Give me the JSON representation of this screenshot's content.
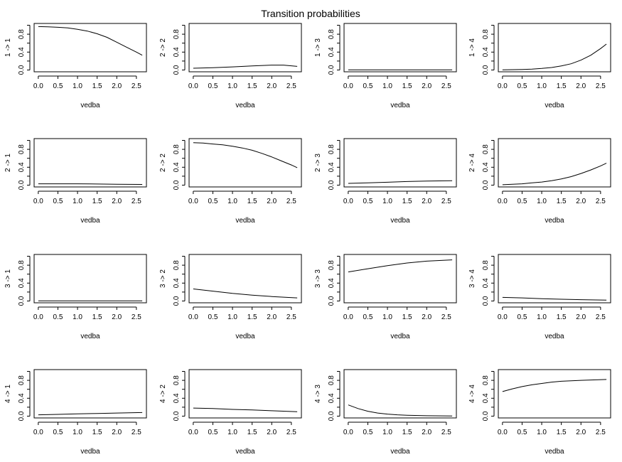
{
  "figure": {
    "title": "Transition probabilities"
  },
  "chart_data": [
    {
      "type": "line",
      "ylabel": "1 -> 1",
      "xlabel": "vedba",
      "x": [
        0,
        0.25,
        0.5,
        0.75,
        1,
        1.25,
        1.5,
        1.75,
        2,
        2.25,
        2.5,
        2.65
      ],
      "values": [
        0.97,
        0.965,
        0.955,
        0.94,
        0.91,
        0.87,
        0.81,
        0.73,
        0.62,
        0.51,
        0.4,
        0.33
      ],
      "xlim": [
        0,
        2.65
      ],
      "ylim": [
        0,
        1
      ],
      "xticks": [
        "0.0",
        "0.5",
        "1.0",
        "1.5",
        "2.0",
        "2.5"
      ],
      "yticks": [
        "0.0",
        "0.4",
        "0.8"
      ]
    },
    {
      "type": "line",
      "ylabel": "2 -> 2",
      "xlabel": "vedba",
      "x": [
        0,
        0.5,
        1,
        1.5,
        2,
        2.3,
        2.65
      ],
      "values": [
        0.04,
        0.05,
        0.07,
        0.09,
        0.11,
        0.11,
        0.08
      ],
      "xlim": [
        0,
        2.65
      ],
      "ylim": [
        0,
        1
      ],
      "xticks": [
        "0.0",
        "0.5",
        "1.0",
        "1.5",
        "2.0",
        "2.5"
      ],
      "yticks": [
        "0.0",
        "0.4",
        "0.8"
      ]
    },
    {
      "type": "line",
      "ylabel": "1 -> 3",
      "xlabel": "vedba",
      "x": [
        0,
        0.5,
        1,
        1.5,
        2,
        2.65
      ],
      "values": [
        0.003,
        0.003,
        0.003,
        0.003,
        0.003,
        0.003
      ],
      "xlim": [
        0,
        2.65
      ],
      "ylim": [
        0,
        1
      ],
      "xticks": [
        "0.0",
        "0.5",
        "1.0",
        "1.5",
        "2.0",
        "2.5"
      ],
      "yticks": [
        "0.0",
        "0.4",
        "0.8"
      ]
    },
    {
      "type": "line",
      "ylabel": "1 -> 4",
      "xlabel": "vedba",
      "x": [
        0,
        0.25,
        0.5,
        0.75,
        1,
        1.25,
        1.5,
        1.75,
        2,
        2.25,
        2.5,
        2.65
      ],
      "values": [
        0.005,
        0.008,
        0.013,
        0.02,
        0.035,
        0.055,
        0.09,
        0.14,
        0.22,
        0.33,
        0.48,
        0.58
      ],
      "xlim": [
        0,
        2.65
      ],
      "ylim": [
        0,
        1
      ],
      "xticks": [
        "0.0",
        "0.5",
        "1.0",
        "1.5",
        "2.0",
        "2.5"
      ],
      "yticks": [
        "0.0",
        "0.4",
        "0.8"
      ]
    },
    {
      "type": "line",
      "ylabel": "2 -> 1",
      "xlabel": "vedba",
      "x": [
        0,
        0.5,
        1,
        1.5,
        2,
        2.65
      ],
      "values": [
        0.03,
        0.03,
        0.03,
        0.025,
        0.02,
        0.015
      ],
      "xlim": [
        0,
        2.65
      ],
      "ylim": [
        0,
        1
      ],
      "xticks": [
        "0.0",
        "0.5",
        "1.0",
        "1.5",
        "2.0",
        "2.5"
      ],
      "yticks": [
        "0.0",
        "0.4",
        "0.8"
      ]
    },
    {
      "type": "line",
      "ylabel": "2 -> 2",
      "xlabel": "vedba",
      "x": [
        0,
        0.25,
        0.5,
        0.75,
        1,
        1.25,
        1.5,
        1.75,
        2,
        2.25,
        2.5,
        2.65
      ],
      "values": [
        0.95,
        0.94,
        0.92,
        0.9,
        0.87,
        0.83,
        0.78,
        0.71,
        0.63,
        0.54,
        0.45,
        0.39
      ],
      "xlim": [
        0,
        2.65
      ],
      "ylim": [
        0,
        1
      ],
      "xticks": [
        "0.0",
        "0.5",
        "1.0",
        "1.5",
        "2.0",
        "2.5"
      ],
      "yticks": [
        "0.0",
        "0.4",
        "0.8"
      ]
    },
    {
      "type": "line",
      "ylabel": "2 -> 3",
      "xlabel": "vedba",
      "x": [
        0,
        0.5,
        1,
        1.5,
        2,
        2.65
      ],
      "values": [
        0.04,
        0.05,
        0.065,
        0.08,
        0.09,
        0.1
      ],
      "xlim": [
        0,
        2.65
      ],
      "ylim": [
        0,
        1
      ],
      "xticks": [
        "0.0",
        "0.5",
        "1.0",
        "1.5",
        "2.0",
        "2.5"
      ],
      "yticks": [
        "0.0",
        "0.4",
        "0.8"
      ]
    },
    {
      "type": "line",
      "ylabel": "2 -> 4",
      "xlabel": "vedba",
      "x": [
        0,
        0.25,
        0.5,
        0.75,
        1,
        1.25,
        1.5,
        1.75,
        2,
        2.25,
        2.5,
        2.65
      ],
      "values": [
        0.01,
        0.02,
        0.03,
        0.05,
        0.07,
        0.1,
        0.14,
        0.19,
        0.26,
        0.34,
        0.43,
        0.49
      ],
      "xlim": [
        0,
        2.65
      ],
      "ylim": [
        0,
        1
      ],
      "xticks": [
        "0.0",
        "0.5",
        "1.0",
        "1.5",
        "2.0",
        "2.5"
      ],
      "yticks": [
        "0.0",
        "0.4",
        "0.8"
      ]
    },
    {
      "type": "line",
      "ylabel": "3 -> 1",
      "xlabel": "vedba",
      "x": [
        0,
        0.5,
        1,
        1.5,
        2,
        2.65
      ],
      "values": [
        0.004,
        0.004,
        0.004,
        0.004,
        0.004,
        0.004
      ],
      "xlim": [
        0,
        2.65
      ],
      "ylim": [
        0,
        1
      ],
      "xticks": [
        "0.0",
        "0.5",
        "1.0",
        "1.5",
        "2.0",
        "2.5"
      ],
      "yticks": [
        "0.0",
        "0.4",
        "0.8"
      ]
    },
    {
      "type": "line",
      "ylabel": "3 -> 2",
      "xlabel": "vedba",
      "x": [
        0,
        0.5,
        1,
        1.5,
        2,
        2.65
      ],
      "values": [
        0.27,
        0.22,
        0.17,
        0.13,
        0.1,
        0.07
      ],
      "xlim": [
        0,
        2.65
      ],
      "ylim": [
        0,
        1
      ],
      "xticks": [
        "0.0",
        "0.5",
        "1.0",
        "1.5",
        "2.0",
        "2.5"
      ],
      "yticks": [
        "0.0",
        "0.4",
        "0.8"
      ]
    },
    {
      "type": "line",
      "ylabel": "3 -> 3",
      "xlabel": "vedba",
      "x": [
        0,
        0.5,
        1,
        1.5,
        2,
        2.65
      ],
      "values": [
        0.65,
        0.72,
        0.79,
        0.85,
        0.89,
        0.92
      ],
      "xlim": [
        0,
        2.65
      ],
      "ylim": [
        0,
        1
      ],
      "xticks": [
        "0.0",
        "0.5",
        "1.0",
        "1.5",
        "2.0",
        "2.5"
      ],
      "yticks": [
        "0.0",
        "0.4",
        "0.8"
      ]
    },
    {
      "type": "line",
      "ylabel": "3 -> 4",
      "xlabel": "vedba",
      "x": [
        0,
        0.5,
        1,
        1.5,
        2,
        2.65
      ],
      "values": [
        0.08,
        0.07,
        0.05,
        0.04,
        0.03,
        0.02
      ],
      "xlim": [
        0,
        2.65
      ],
      "ylim": [
        0,
        1
      ],
      "xticks": [
        "0.0",
        "0.5",
        "1.0",
        "1.5",
        "2.0",
        "2.5"
      ],
      "yticks": [
        "0.0",
        "0.4",
        "0.8"
      ]
    },
    {
      "type": "line",
      "ylabel": "4 -> 1",
      "xlabel": "vedba",
      "x": [
        0,
        0.5,
        1,
        1.5,
        2,
        2.65
      ],
      "values": [
        0.03,
        0.04,
        0.05,
        0.06,
        0.07,
        0.08
      ],
      "xlim": [
        0,
        2.65
      ],
      "ylim": [
        0,
        1
      ],
      "xticks": [
        "0.0",
        "0.5",
        "1.0",
        "1.5",
        "2.0",
        "2.5"
      ],
      "yticks": [
        "0.0",
        "0.4",
        "0.8"
      ]
    },
    {
      "type": "line",
      "ylabel": "4 -> 2",
      "xlabel": "vedba",
      "x": [
        0,
        0.5,
        1,
        1.5,
        2,
        2.65
      ],
      "values": [
        0.18,
        0.17,
        0.15,
        0.14,
        0.12,
        0.1
      ],
      "xlim": [
        0,
        2.65
      ],
      "ylim": [
        0,
        1
      ],
      "xticks": [
        "0.0",
        "0.5",
        "1.0",
        "1.5",
        "2.0",
        "2.5"
      ],
      "yticks": [
        "0.0",
        "0.4",
        "0.8"
      ]
    },
    {
      "type": "line",
      "ylabel": "4 -> 3",
      "xlabel": "vedba",
      "x": [
        0,
        0.25,
        0.5,
        0.75,
        1,
        1.25,
        1.5,
        2,
        2.65
      ],
      "values": [
        0.25,
        0.17,
        0.11,
        0.07,
        0.045,
        0.03,
        0.02,
        0.01,
        0.005
      ],
      "xlim": [
        0,
        2.65
      ],
      "ylim": [
        0,
        1
      ],
      "xticks": [
        "0.0",
        "0.5",
        "1.0",
        "1.5",
        "2.0",
        "2.5"
      ],
      "yticks": [
        "0.0",
        "0.4",
        "0.8"
      ]
    },
    {
      "type": "line",
      "ylabel": "4 -> 4",
      "xlabel": "vedba",
      "x": [
        0,
        0.25,
        0.5,
        0.75,
        1,
        1.25,
        1.5,
        2,
        2.65
      ],
      "values": [
        0.55,
        0.61,
        0.66,
        0.7,
        0.73,
        0.76,
        0.78,
        0.8,
        0.82
      ],
      "xlim": [
        0,
        2.65
      ],
      "ylim": [
        0,
        1
      ],
      "xticks": [
        "0.0",
        "0.5",
        "1.0",
        "1.5",
        "2.0",
        "2.5"
      ],
      "yticks": [
        "0.0",
        "0.4",
        "0.8"
      ]
    }
  ]
}
